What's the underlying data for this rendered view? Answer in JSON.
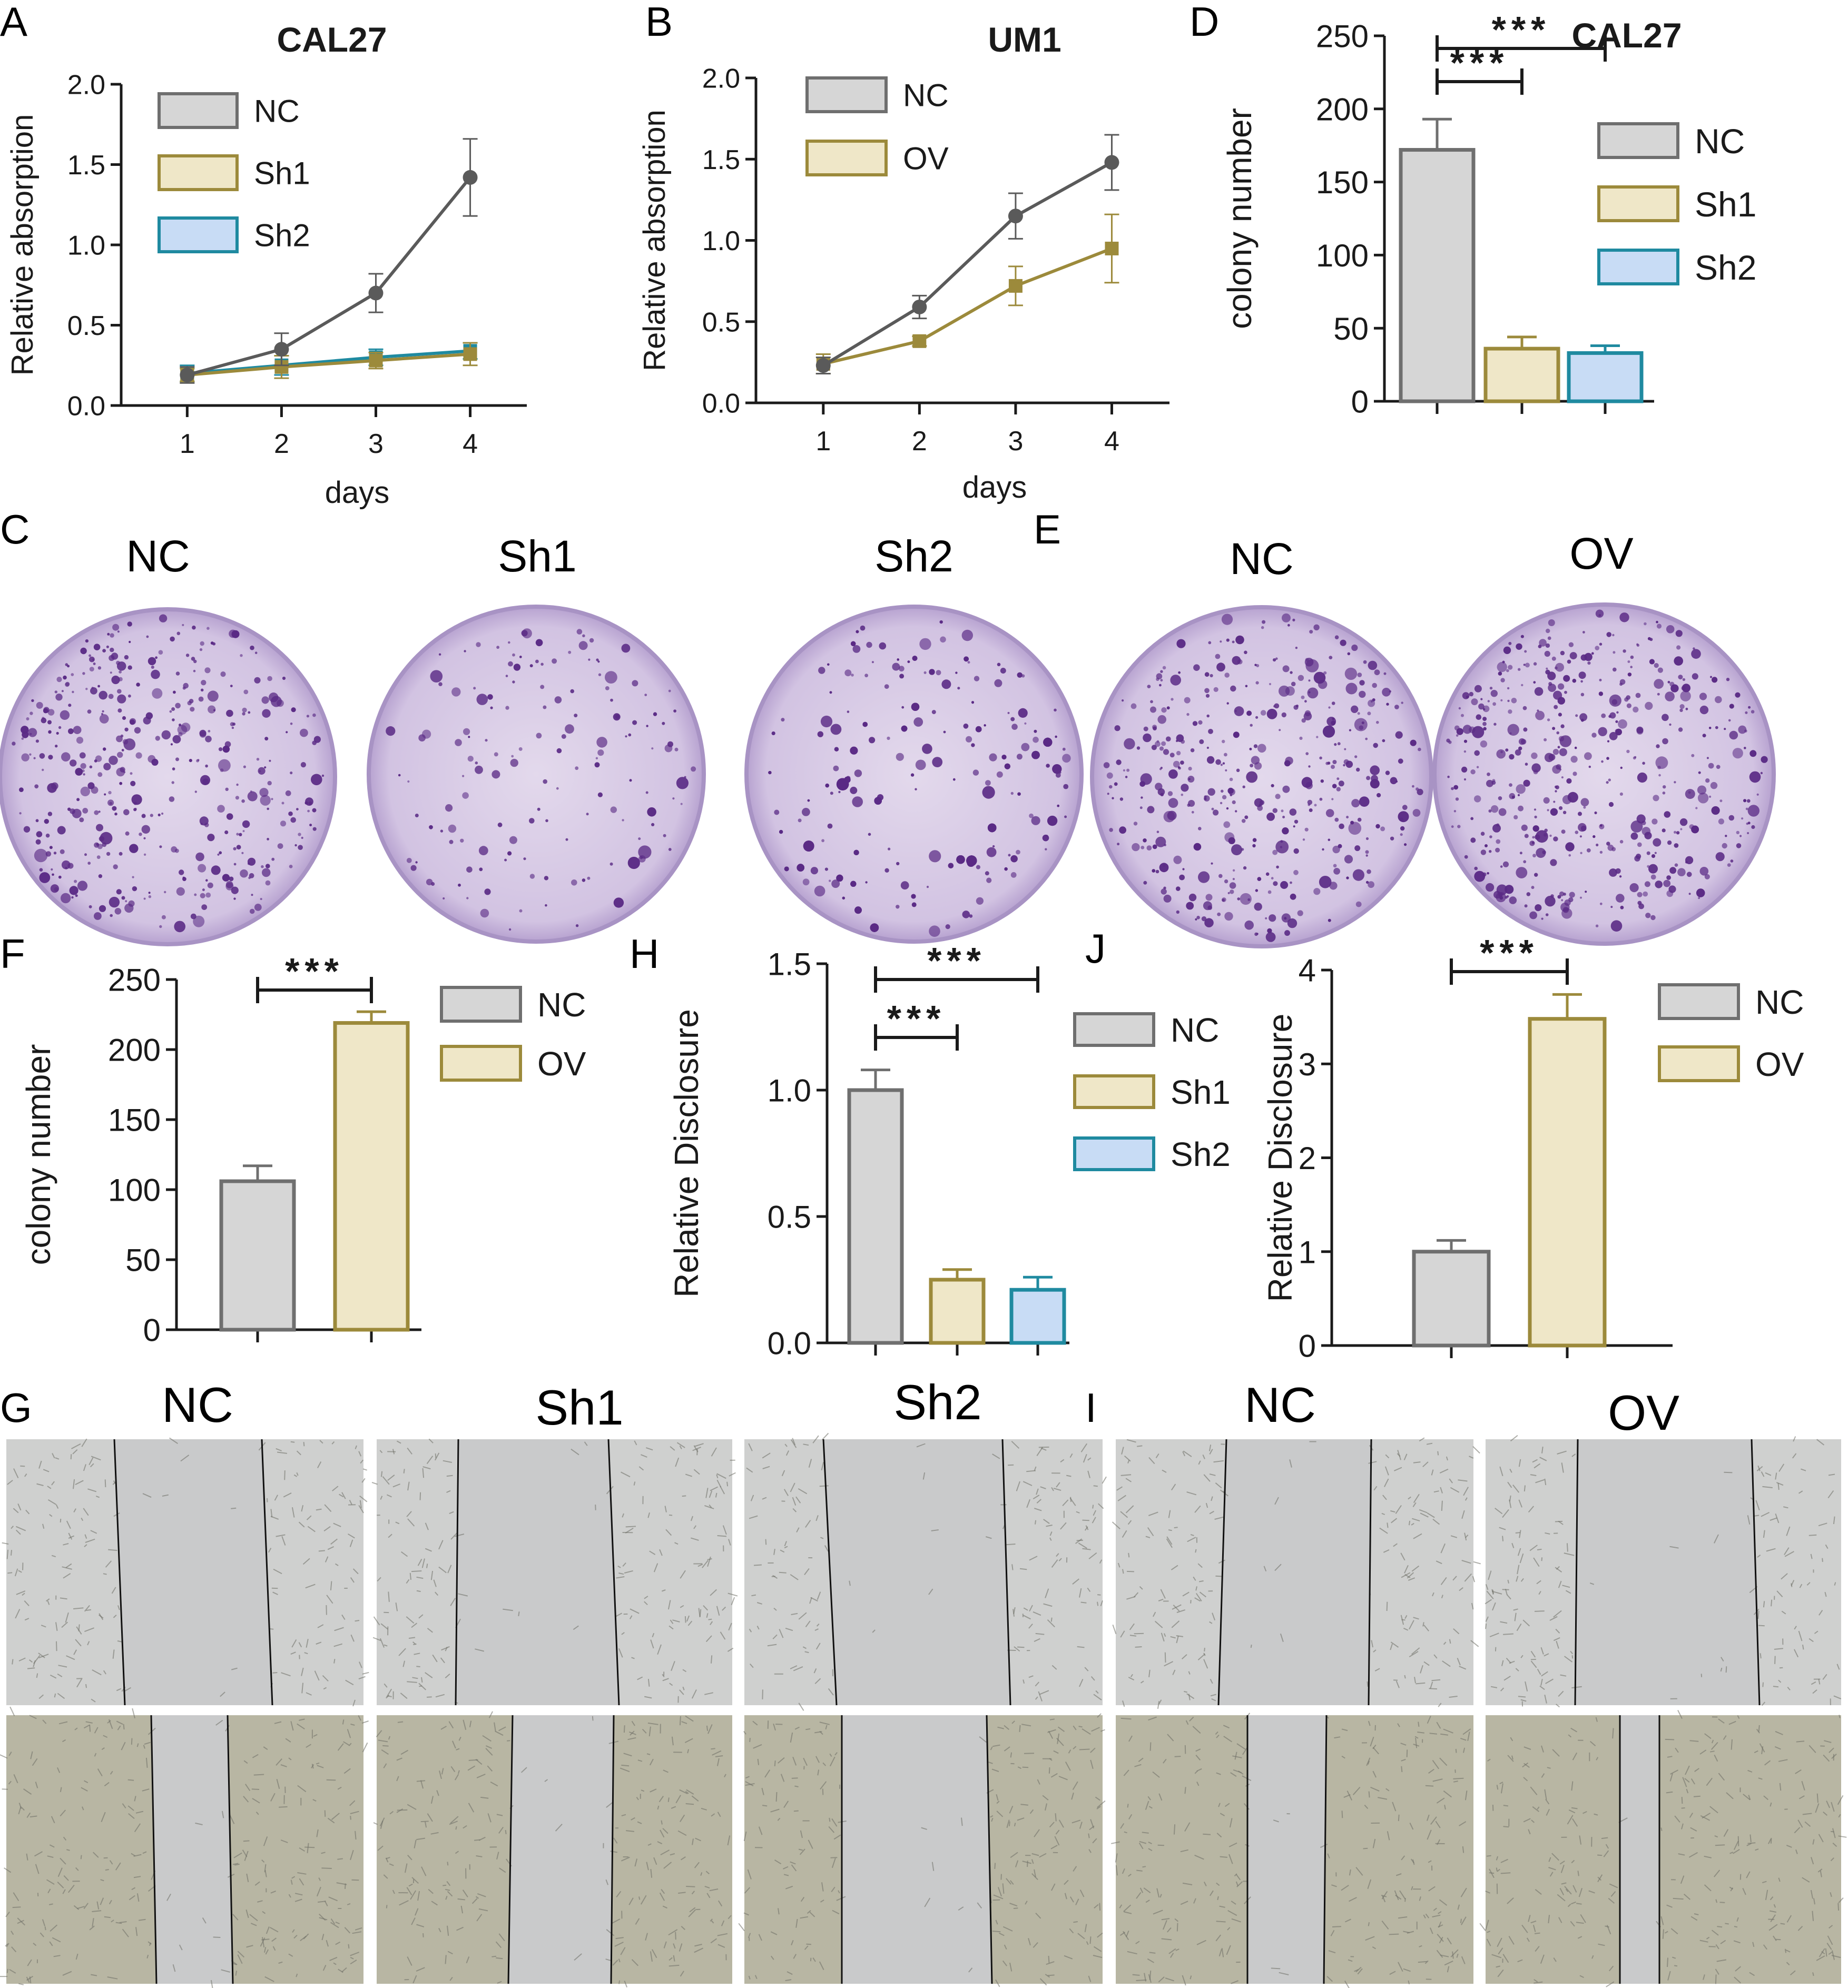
{
  "colors": {
    "nc_line": "#5a5a5a",
    "sh1_line": "#9c8a3b",
    "sh2_line": "#1f8aa0",
    "nc_fill": "#d6d6d6",
    "nc_stroke": "#6f6f6f",
    "sh1_fill": "#efe7c8",
    "sh1_stroke": "#9c8a3b",
    "sh2_fill": "#c8dcf5",
    "sh2_stroke": "#1f8aa0",
    "colony_stain": "#5a2a85",
    "dish_fill": "#d9cde6",
    "dish_rim": "#a893c4",
    "micro_bg": "#cfd0cf",
    "micro_bg_dense": "#b8b6a3",
    "scratch_gap": "#c9cacb"
  },
  "panel_letters": [
    "A",
    "B",
    "C",
    "D",
    "E",
    "F",
    "G",
    "H",
    "I",
    "J"
  ],
  "dish_labels": {
    "C": [
      "NC",
      "Sh1",
      "Sh2"
    ],
    "E": [
      "NC",
      "OV"
    ]
  },
  "wound_labels": {
    "G": [
      "NC",
      "Sh1",
      "Sh2"
    ],
    "I": [
      "NC",
      "OV"
    ]
  },
  "chart_data": [
    {
      "id": "A",
      "type": "line",
      "title": "CAL27",
      "xlabel": "days",
      "ylabel": "Relative absorption",
      "x": [
        1,
        2,
        3,
        4
      ],
      "xticks": [
        "1",
        "2",
        "3",
        "4"
      ],
      "ylim": [
        0,
        2.0
      ],
      "yticks": [
        "0.0",
        "0.5",
        "1.0",
        "1.5",
        "2.0"
      ],
      "legend": [
        "NC",
        "Sh1",
        "Sh2"
      ],
      "series": [
        {
          "name": "NC",
          "marker": "circle",
          "values": [
            0.19,
            0.35,
            0.7,
            1.42
          ],
          "err": [
            0.05,
            0.1,
            0.12,
            0.24
          ]
        },
        {
          "name": "Sh1",
          "marker": "square",
          "values": [
            0.19,
            0.24,
            0.28,
            0.32
          ],
          "err": [
            0.04,
            0.07,
            0.05,
            0.07
          ]
        },
        {
          "name": "Sh2",
          "marker": "square",
          "values": [
            0.2,
            0.25,
            0.3,
            0.34
          ],
          "err": [
            0.05,
            0.06,
            0.05,
            0.05
          ]
        }
      ]
    },
    {
      "id": "B",
      "type": "line",
      "title": "UM1",
      "xlabel": "days",
      "ylabel": "Relative absorption",
      "x": [
        1,
        2,
        3,
        4
      ],
      "xticks": [
        "1",
        "2",
        "3",
        "4"
      ],
      "ylim": [
        0,
        2.0
      ],
      "yticks": [
        "0.0",
        "0.5",
        "1.0",
        "1.5",
        "2.0"
      ],
      "legend": [
        "NC",
        "OV"
      ],
      "series": [
        {
          "name": "NC",
          "marker": "circle",
          "values": [
            0.23,
            0.59,
            1.15,
            1.48
          ],
          "err": [
            0.05,
            0.07,
            0.14,
            0.17
          ]
        },
        {
          "name": "OV",
          "marker": "square",
          "values": [
            0.24,
            0.38,
            0.72,
            0.95
          ],
          "err": [
            0.06,
            0.03,
            0.12,
            0.21
          ]
        }
      ]
    },
    {
      "id": "D",
      "type": "bar",
      "title": "CAL27",
      "xlabel": "",
      "ylabel": "colony number",
      "categories": [
        "NC",
        "Sh1",
        "Sh2"
      ],
      "ylim": [
        0,
        250
      ],
      "yticks": [
        "0",
        "50",
        "100",
        "150",
        "200",
        "250"
      ],
      "legend": [
        "NC",
        "Sh1",
        "Sh2"
      ],
      "values": [
        172,
        36,
        33
      ],
      "err": [
        21,
        8,
        5
      ],
      "significance": [
        {
          "from": 0,
          "to": 1,
          "label": "***"
        },
        {
          "from": 0,
          "to": 2,
          "label": "***"
        }
      ]
    },
    {
      "id": "F",
      "type": "bar",
      "title": "",
      "xlabel": "",
      "ylabel": "colony number",
      "categories": [
        "NC",
        "OV"
      ],
      "ylim": [
        0,
        250
      ],
      "yticks": [
        "0",
        "50",
        "100",
        "150",
        "200",
        "250"
      ],
      "legend": [
        "NC",
        "OV"
      ],
      "values": [
        106,
        219
      ],
      "err": [
        11,
        8
      ],
      "significance": [
        {
          "from": 0,
          "to": 1,
          "label": "***"
        }
      ]
    },
    {
      "id": "H",
      "type": "bar",
      "title": "",
      "xlabel": "",
      "ylabel": "Relative Disclosure",
      "categories": [
        "NC",
        "Sh1",
        "Sh2"
      ],
      "ylim": [
        0,
        1.5
      ],
      "yticks": [
        "0.0",
        "0.5",
        "1.0",
        "1.5"
      ],
      "legend": [
        "NC",
        "Sh1",
        "Sh2"
      ],
      "values": [
        1.0,
        0.25,
        0.21
      ],
      "err": [
        0.08,
        0.04,
        0.05
      ],
      "significance": [
        {
          "from": 0,
          "to": 1,
          "label": "***"
        },
        {
          "from": 0,
          "to": 2,
          "label": "***"
        }
      ]
    },
    {
      "id": "J",
      "type": "bar",
      "title": "",
      "xlabel": "",
      "ylabel": "Relative Disclosure",
      "categories": [
        "NC",
        "OV"
      ],
      "ylim": [
        0,
        4
      ],
      "yticks": [
        "0",
        "1",
        "2",
        "3",
        "4"
      ],
      "legend": [
        "NC",
        "OV"
      ],
      "values": [
        1.0,
        3.48
      ],
      "err": [
        0.12,
        0.26
      ],
      "significance": [
        {
          "from": 0,
          "to": 1,
          "label": "***"
        }
      ]
    }
  ]
}
